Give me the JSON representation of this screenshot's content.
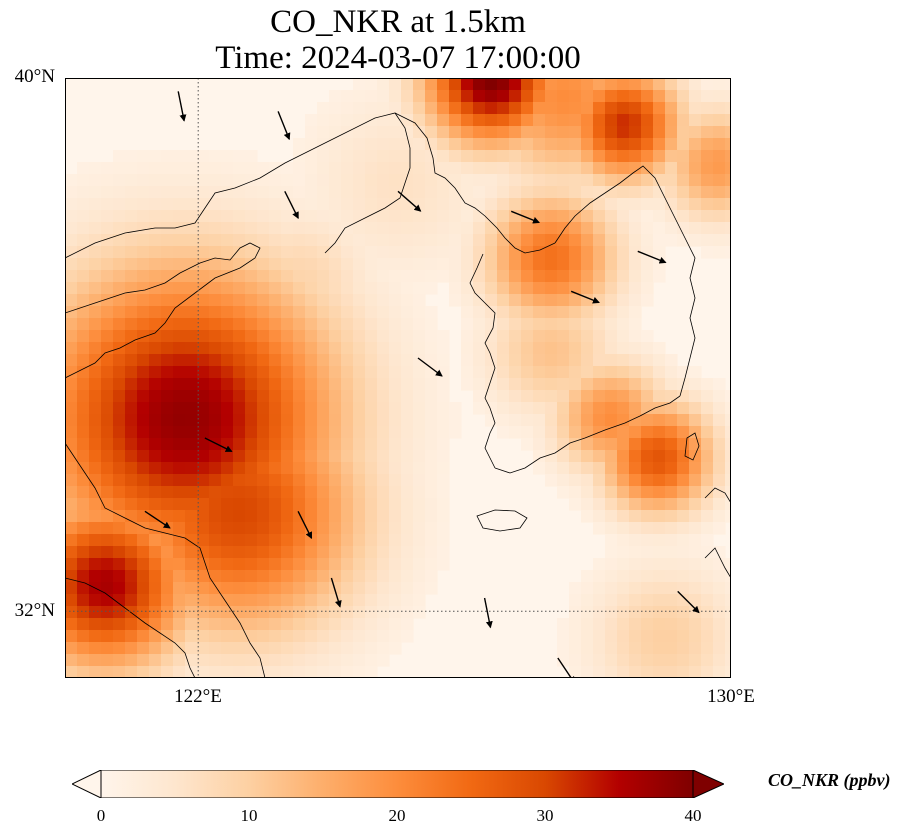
{
  "title": {
    "line1": "CO_NKR at 1.5km",
    "line2": "Time: 2024-03-07 17:00:00"
  },
  "axes": {
    "lat_labels": [
      "40°N",
      "32°N"
    ],
    "lon_labels": [
      "122°E",
      "130°E"
    ],
    "lon_range": [
      120,
      130
    ],
    "lat_range": [
      31,
      40
    ],
    "gridlines": {
      "lons": [
        122
      ],
      "lats": [
        32
      ],
      "style": "dotted"
    }
  },
  "colorbar": {
    "label": "CO_NKR (ppbv)",
    "ticks": [
      "0",
      "10",
      "20",
      "30",
      "40"
    ],
    "min": 0,
    "max": 40,
    "extend": "both",
    "colors": [
      "#fff5eb",
      "#fee6ce",
      "#fdd0a2",
      "#fdae6b",
      "#fd8d3c",
      "#f16913",
      "#d94801",
      "#b30000",
      "#7f0000"
    ]
  },
  "chart_data": {
    "type": "heatmap",
    "variable": "CO_NKR",
    "units": "ppbv",
    "level": "1.5km",
    "time": "2024-03-07 17:00:00",
    "regions": [
      {
        "lon": 121.8,
        "lat": 34.9,
        "value": 38,
        "spread": 1.6
      },
      {
        "lon": 120.6,
        "lat": 32.4,
        "value": 36,
        "spread": 0.9
      },
      {
        "lon": 122.6,
        "lat": 33.5,
        "value": 30,
        "spread": 1.3
      },
      {
        "lon": 121.2,
        "lat": 35.9,
        "value": 26,
        "spread": 0.9
      },
      {
        "lon": 126.4,
        "lat": 40.0,
        "value": 40,
        "spread": 0.7
      },
      {
        "lon": 128.4,
        "lat": 39.3,
        "value": 32,
        "spread": 0.6
      },
      {
        "lon": 127.5,
        "lat": 39.7,
        "value": 20,
        "spread": 0.9
      },
      {
        "lon": 129.8,
        "lat": 38.7,
        "value": 18,
        "spread": 0.6
      },
      {
        "lon": 127.3,
        "lat": 37.3,
        "value": 24,
        "spread": 0.7
      },
      {
        "lon": 128.9,
        "lat": 34.3,
        "value": 28,
        "spread": 0.6
      },
      {
        "lon": 128.2,
        "lat": 34.9,
        "value": 20,
        "spread": 0.6
      },
      {
        "lon": 127.3,
        "lat": 35.9,
        "value": 12,
        "spread": 0.7
      },
      {
        "lon": 125.0,
        "lat": 38.4,
        "value": 6,
        "spread": 1.0
      },
      {
        "lon": 123.5,
        "lat": 36.9,
        "value": 9,
        "spread": 0.8
      },
      {
        "lon": 129.0,
        "lat": 31.6,
        "value": 10,
        "spread": 0.8
      }
    ],
    "wind_vectors_sample": [
      {
        "lon": 121.7,
        "lat": 39.8,
        "u": 0.2,
        "v": -1.0
      },
      {
        "lon": 123.2,
        "lat": 39.5,
        "u": 0.4,
        "v": -1.0
      },
      {
        "lon": 123.3,
        "lat": 38.3,
        "u": 0.5,
        "v": -1.0
      },
      {
        "lon": 125.0,
        "lat": 38.3,
        "u": 0.8,
        "v": -0.7
      },
      {
        "lon": 126.7,
        "lat": 38.0,
        "u": 1.0,
        "v": -0.4
      },
      {
        "lon": 127.6,
        "lat": 36.8,
        "u": 1.0,
        "v": -0.4
      },
      {
        "lon": 128.6,
        "lat": 37.4,
        "u": 1.0,
        "v": -0.4
      },
      {
        "lon": 125.3,
        "lat": 35.8,
        "u": 0.8,
        "v": -0.6
      },
      {
        "lon": 122.1,
        "lat": 34.6,
        "u": 1.0,
        "v": -0.5
      },
      {
        "lon": 121.2,
        "lat": 33.5,
        "u": 0.9,
        "v": -0.6
      },
      {
        "lon": 123.5,
        "lat": 33.5,
        "u": 0.5,
        "v": -1.0
      },
      {
        "lon": 124.0,
        "lat": 32.5,
        "u": 0.3,
        "v": -1.0
      },
      {
        "lon": 126.3,
        "lat": 32.2,
        "u": 0.2,
        "v": -1.0
      },
      {
        "lon": 127.4,
        "lat": 31.3,
        "u": 0.6,
        "v": -0.9
      },
      {
        "lon": 129.2,
        "lat": 32.3,
        "u": 0.7,
        "v": -0.7
      }
    ]
  }
}
